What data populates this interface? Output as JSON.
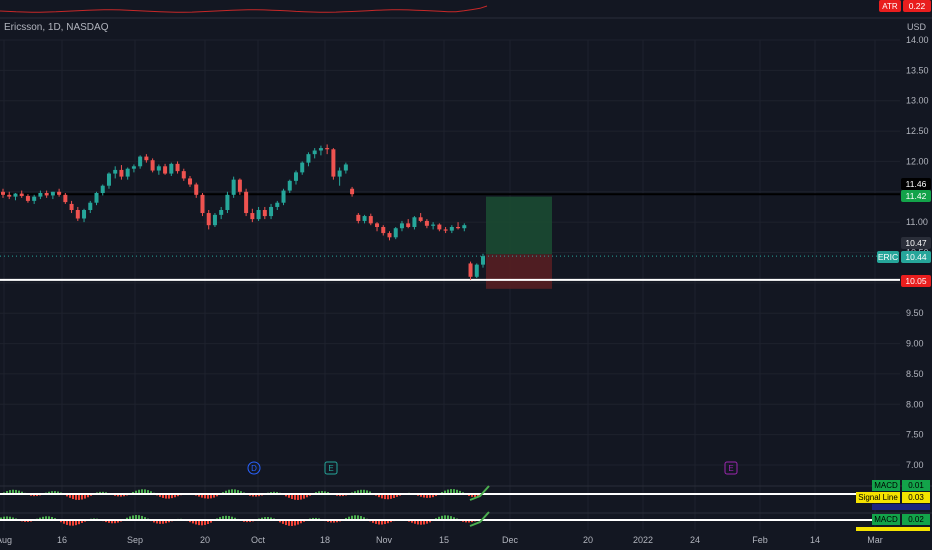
{
  "header": {
    "symbol_title": "Ericsson, 1D, NASDAQ",
    "currency": "USD",
    "atr_label": "ATR",
    "atr_value": "0.22"
  },
  "colors": {
    "background": "#131722",
    "up": "#26a69a",
    "down": "#ef5350",
    "price_tag": "#2a9d8f",
    "target_zone": "#1b4d32",
    "stop_zone": "#5a1e22",
    "red_tag": "#e91e1e",
    "green_tag": "#13a34a"
  },
  "chart_data": {
    "type": "candlestick",
    "y_range": [
      6.8,
      14.4
    ],
    "y_ticks": [
      "14.00",
      "13.50",
      "13.00",
      "12.50",
      "12.00",
      "11.50",
      "11.00",
      "10.50",
      "10.00",
      "9.50",
      "9.00",
      "8.50",
      "8.00",
      "7.50",
      "7.00"
    ],
    "x_ticks": [
      "Aug",
      "16",
      "Sep",
      "20",
      "Oct",
      "18",
      "Nov",
      "15",
      "Dec",
      "20",
      "2022",
      "24",
      "Feb",
      "14",
      "Mar"
    ],
    "last_price": 10.44,
    "horizontal_lines": [
      {
        "value": 11.46,
        "color": "#000000"
      },
      {
        "value": 10.05,
        "color": "#ffffff"
      }
    ],
    "price_tags": [
      {
        "text": "11.46",
        "value": 11.46,
        "bg": "#000000",
        "fg": "#ffffff"
      },
      {
        "text": "11.42",
        "value": 11.42,
        "bg": "#13a34a",
        "fg": "#ffffff"
      },
      {
        "text": "10.47",
        "value": 10.47,
        "bg": "#2a2e39",
        "fg": "#ffffff"
      },
      {
        "text": "ERIC",
        "value": 10.44,
        "bg": "#26a69a",
        "fg": "#ffffff"
      },
      {
        "text": "10.44",
        "value": 10.44,
        "bg": "#26a69a",
        "fg": "#ffffff"
      },
      {
        "text": "10.05",
        "value": 10.05,
        "bg": "#e91e1e",
        "fg": "#ffffff"
      }
    ],
    "position": {
      "entry": 10.47,
      "target": 11.42,
      "stop": 10.05
    },
    "candles": [
      [
        11.5,
        11.55,
        11.4,
        11.45
      ],
      [
        11.45,
        11.5,
        11.38,
        11.42
      ],
      [
        11.42,
        11.48,
        11.36,
        11.47
      ],
      [
        11.47,
        11.52,
        11.4,
        11.43
      ],
      [
        11.43,
        11.46,
        11.32,
        11.35
      ],
      [
        11.35,
        11.45,
        11.3,
        11.42
      ],
      [
        11.42,
        11.52,
        11.38,
        11.48
      ],
      [
        11.48,
        11.52,
        11.4,
        11.44
      ],
      [
        11.44,
        11.5,
        11.38,
        11.5
      ],
      [
        11.5,
        11.55,
        11.42,
        11.45
      ],
      [
        11.45,
        11.48,
        11.3,
        11.33
      ],
      [
        11.3,
        11.35,
        11.15,
        11.2
      ],
      [
        11.2,
        11.25,
        11.02,
        11.06
      ],
      [
        11.06,
        11.22,
        11.0,
        11.2
      ],
      [
        11.2,
        11.35,
        11.15,
        11.32
      ],
      [
        11.32,
        11.5,
        11.28,
        11.48
      ],
      [
        11.48,
        11.62,
        11.44,
        11.6
      ],
      [
        11.6,
        11.82,
        11.55,
        11.8
      ],
      [
        11.8,
        11.92,
        11.72,
        11.86
      ],
      [
        11.86,
        11.94,
        11.7,
        11.75
      ],
      [
        11.75,
        11.9,
        11.7,
        11.88
      ],
      [
        11.88,
        11.95,
        11.82,
        11.92
      ],
      [
        11.92,
        12.1,
        11.88,
        12.08
      ],
      [
        12.08,
        12.12,
        11.98,
        12.02
      ],
      [
        12.02,
        12.05,
        11.82,
        11.85
      ],
      [
        11.85,
        11.95,
        11.78,
        11.92
      ],
      [
        11.92,
        11.96,
        11.78,
        11.8
      ],
      [
        11.8,
        11.98,
        11.76,
        11.96
      ],
      [
        11.96,
        12.0,
        11.8,
        11.84
      ],
      [
        11.84,
        11.88,
        11.68,
        11.72
      ],
      [
        11.72,
        11.76,
        11.58,
        11.62
      ],
      [
        11.62,
        11.65,
        11.4,
        11.45
      ],
      [
        11.45,
        11.48,
        11.1,
        11.15
      ],
      [
        11.15,
        11.2,
        10.88,
        10.95
      ],
      [
        10.95,
        11.15,
        10.92,
        11.12
      ],
      [
        11.12,
        11.25,
        11.05,
        11.2
      ],
      [
        11.2,
        11.5,
        11.15,
        11.45
      ],
      [
        11.45,
        11.75,
        11.4,
        11.7
      ],
      [
        11.7,
        11.72,
        11.45,
        11.5
      ],
      [
        11.5,
        11.55,
        11.1,
        11.15
      ],
      [
        11.15,
        11.22,
        11.0,
        11.05
      ],
      [
        11.05,
        11.25,
        11.02,
        11.2
      ],
      [
        11.2,
        11.25,
        11.05,
        11.1
      ],
      [
        11.1,
        11.3,
        11.05,
        11.25
      ],
      [
        11.25,
        11.35,
        11.2,
        11.32
      ],
      [
        11.32,
        11.55,
        11.28,
        11.52
      ],
      [
        11.52,
        11.7,
        11.48,
        11.68
      ],
      [
        11.68,
        11.85,
        11.62,
        11.82
      ],
      [
        11.82,
        12.0,
        11.78,
        11.98
      ],
      [
        11.98,
        12.15,
        11.92,
        12.12
      ],
      [
        12.12,
        12.22,
        12.05,
        12.18
      ],
      [
        12.18,
        12.26,
        12.1,
        12.22
      ],
      [
        12.22,
        12.28,
        12.12,
        12.2
      ],
      [
        12.2,
        12.22,
        11.7,
        11.75
      ],
      [
        11.75,
        11.9,
        11.6,
        11.85
      ],
      [
        11.85,
        11.98,
        11.8,
        11.95
      ],
      [
        11.55,
        11.58,
        11.42,
        11.46
      ],
      [
        11.12,
        11.15,
        10.98,
        11.02
      ],
      [
        11.02,
        11.12,
        10.98,
        11.1
      ],
      [
        11.1,
        11.14,
        10.95,
        10.98
      ],
      [
        10.98,
        11.0,
        10.85,
        10.92
      ],
      [
        10.92,
        10.95,
        10.78,
        10.82
      ],
      [
        10.82,
        10.85,
        10.7,
        10.75
      ],
      [
        10.75,
        10.92,
        10.72,
        10.9
      ],
      [
        10.9,
        11.02,
        10.85,
        10.98
      ],
      [
        10.98,
        11.05,
        10.9,
        10.92
      ],
      [
        10.92,
        11.1,
        10.88,
        11.08
      ],
      [
        11.08,
        11.15,
        11.0,
        11.02
      ],
      [
        11.02,
        11.05,
        10.9,
        10.94
      ],
      [
        10.94,
        11.0,
        10.88,
        10.96
      ],
      [
        10.96,
        10.98,
        10.85,
        10.88
      ],
      [
        10.88,
        10.92,
        10.82,
        10.86
      ],
      [
        10.86,
        10.95,
        10.82,
        10.92
      ],
      [
        10.92,
        11.0,
        10.88,
        10.9
      ],
      [
        10.9,
        10.98,
        10.85,
        10.95
      ],
      [
        10.32,
        10.35,
        10.05,
        10.1
      ],
      [
        10.1,
        10.32,
        10.08,
        10.3
      ],
      [
        10.3,
        10.48,
        10.25,
        10.44
      ]
    ],
    "indicators": {
      "macd_label": "MACD",
      "macd_value_1": "0.01",
      "signal_label": "Signal Line",
      "signal_value_1": "0.03",
      "macd_value_2": "0.02",
      "event_markers": [
        "D",
        "E",
        "E"
      ]
    }
  }
}
